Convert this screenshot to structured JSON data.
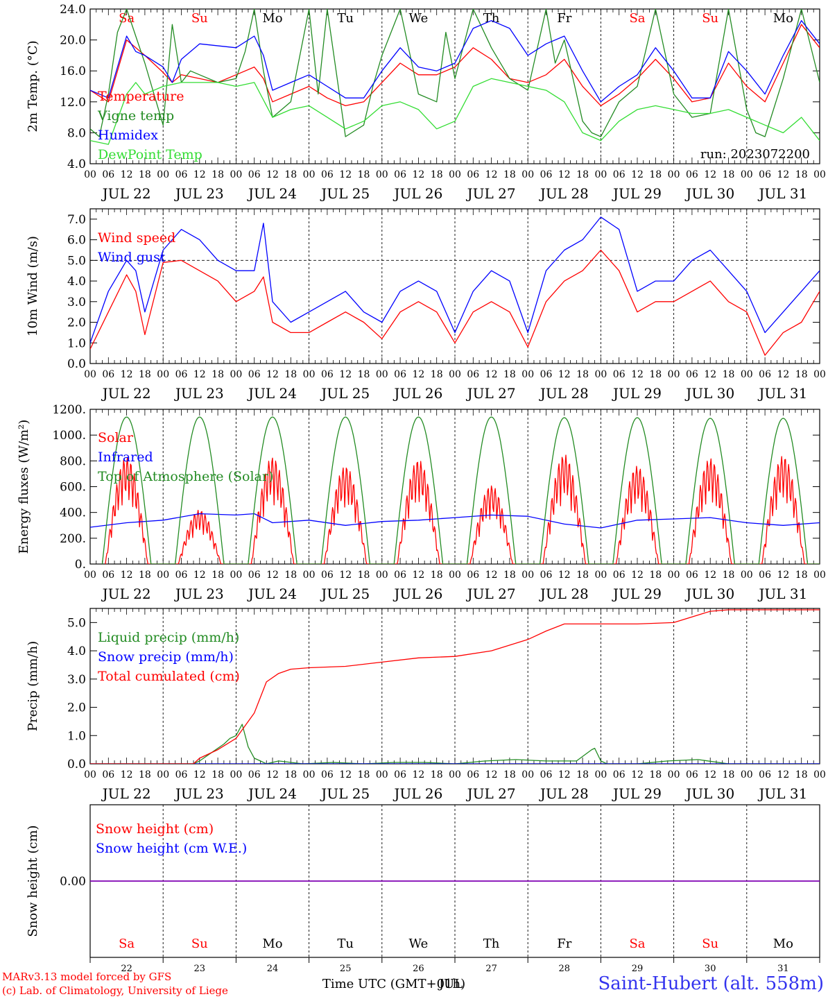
{
  "colors": {
    "red": "#ff0000",
    "green": "#228b22",
    "blue": "#0000ff",
    "lime": "#33dd33",
    "purple": "#7f00b2",
    "axis": "#000000",
    "title_blue": "#3333ee"
  },
  "run_label": "run: 2023072200",
  "footer": {
    "model_line": "MARv3.13 model forced by GFS",
    "credit_line": "(c) Lab. of Climatology, University of Liege",
    "time_axis_label": "Time UTC (GMT+01h)",
    "overlap_label": "JUL",
    "station_title": "Saint-Hubert (alt. 558m)"
  },
  "days": {
    "dates": [
      "JUL 22",
      "JUL 23",
      "JUL 24",
      "JUL 25",
      "JUL 26",
      "JUL 27",
      "JUL 28",
      "JUL 29",
      "JUL 30",
      "JUL 31"
    ],
    "day_numbers": [
      "22",
      "23",
      "24",
      "25",
      "26",
      "27",
      "28",
      "29",
      "30",
      "31"
    ],
    "weekdays": [
      "Sa",
      "Su",
      "Mo",
      "Tu",
      "We",
      "Th",
      "Fr",
      "Sa",
      "Su",
      "Mo"
    ],
    "weekend": [
      true,
      true,
      false,
      false,
      false,
      false,
      false,
      true,
      true,
      false
    ],
    "hour_labels": [
      "00",
      "06",
      "12",
      "18"
    ],
    "end_hour_label": "00"
  },
  "chart_data": [
    {
      "id": "temperature",
      "type": "line",
      "ylabel": "2m Temp. (°C)",
      "ylim": [
        4,
        24
      ],
      "yticks": [
        "4.0",
        "8.0",
        "12.0",
        "16.0",
        "20.0",
        "24.0"
      ],
      "ytick_values": [
        4,
        8,
        12,
        16,
        20,
        24
      ],
      "x_unit": "hours since Jul 22 00 UTC",
      "show_weekdays": true,
      "series": [
        {
          "name": "Temperature",
          "color": "red",
          "x": [
            0,
            6,
            12,
            15,
            18,
            24,
            27,
            30,
            36,
            42,
            48,
            54,
            57,
            60,
            66,
            72,
            78,
            84,
            90,
            96,
            102,
            108,
            114,
            120,
            126,
            132,
            138,
            144,
            150,
            156,
            162,
            168,
            174,
            180,
            186,
            192,
            198,
            204,
            210,
            216,
            222,
            228,
            234,
            240
          ],
          "y": [
            13.5,
            12.0,
            20.0,
            19.0,
            18.0,
            15.8,
            14.5,
            15.5,
            15.0,
            14.5,
            15.5,
            16.5,
            15.0,
            12.0,
            13.0,
            14.0,
            12.5,
            11.5,
            12.0,
            14.5,
            17.0,
            15.5,
            15.5,
            16.5,
            19.0,
            17.5,
            15.0,
            14.5,
            15.5,
            17.5,
            14.0,
            11.5,
            13.0,
            15.0,
            17.5,
            15.0,
            12.0,
            12.5,
            17.0,
            14.0,
            12.0,
            17.0,
            22.0,
            19.0
          ]
        },
        {
          "name": "Vigne temp",
          "color": "green",
          "x": [
            0,
            3,
            6,
            9,
            12,
            18,
            24,
            27,
            30,
            33,
            36,
            42,
            48,
            51,
            54,
            57,
            60,
            66,
            72,
            75,
            78,
            84,
            90,
            93,
            96,
            102,
            108,
            114,
            117,
            120,
            126,
            132,
            138,
            144,
            150,
            153,
            156,
            162,
            165,
            168,
            174,
            180,
            186,
            192,
            198,
            204,
            210,
            216,
            219,
            222,
            228,
            234,
            240
          ],
          "y": [
            8.5,
            7.5,
            13.0,
            21.0,
            24.0,
            17.0,
            9.0,
            22.0,
            14.5,
            16.0,
            15.5,
            14.5,
            15.0,
            18.5,
            24.0,
            16.0,
            10.0,
            12.0,
            24.0,
            13.0,
            24.0,
            7.5,
            9.0,
            14.0,
            18.0,
            24.0,
            13.0,
            12.0,
            21.0,
            15.0,
            24.0,
            19.0,
            15.0,
            13.5,
            24.0,
            17.0,
            20.0,
            9.5,
            8.0,
            7.5,
            12.0,
            14.0,
            24.0,
            13.0,
            10.0,
            10.5,
            24.0,
            11.0,
            8.0,
            7.5,
            15.0,
            24.0,
            14.5
          ]
        },
        {
          "name": "Humidex",
          "color": "blue",
          "x": [
            0,
            6,
            12,
            15,
            18,
            24,
            27,
            30,
            36,
            48,
            54,
            57,
            60,
            66,
            72,
            78,
            84,
            90,
            96,
            102,
            108,
            114,
            120,
            126,
            132,
            138,
            144,
            150,
            156,
            162,
            168,
            174,
            180,
            186,
            192,
            198,
            204,
            210,
            216,
            222,
            228,
            234,
            240
          ],
          "y": [
            13.5,
            12.5,
            20.5,
            18.5,
            18.0,
            16.5,
            14.5,
            17.5,
            19.5,
            19.0,
            20.5,
            18.0,
            13.5,
            14.5,
            15.5,
            14.0,
            12.5,
            12.5,
            16.0,
            19.0,
            16.5,
            16.0,
            17.0,
            21.5,
            22.5,
            21.5,
            18.0,
            19.5,
            20.5,
            16.0,
            12.0,
            14.0,
            15.5,
            19.0,
            16.0,
            12.5,
            12.5,
            18.5,
            16.0,
            13.0,
            18.0,
            22.5,
            19.5
          ]
        },
        {
          "name": "DewPoint Temp",
          "color": "lime",
          "x": [
            0,
            6,
            12,
            15,
            18,
            24,
            30,
            36,
            42,
            48,
            54,
            60,
            66,
            72,
            78,
            84,
            90,
            96,
            102,
            108,
            114,
            120,
            126,
            132,
            138,
            144,
            150,
            156,
            162,
            168,
            174,
            180,
            186,
            192,
            198,
            204,
            210,
            216,
            222,
            228,
            234,
            240
          ],
          "y": [
            7.0,
            6.5,
            13.0,
            14.5,
            13.0,
            14.0,
            14.5,
            14.5,
            14.5,
            14.0,
            14.5,
            10.0,
            11.0,
            11.5,
            10.0,
            8.5,
            9.5,
            11.5,
            12.0,
            11.0,
            8.5,
            9.5,
            14.0,
            15.0,
            14.5,
            14.0,
            13.5,
            12.0,
            8.0,
            7.0,
            9.5,
            11.0,
            11.5,
            11.0,
            10.5,
            10.5,
            11.0,
            10.0,
            9.0,
            8.0,
            10.0,
            7.0
          ]
        }
      ]
    },
    {
      "id": "wind",
      "type": "line",
      "ylabel": "10m Wind (m/s)",
      "ylim": [
        0,
        7.5
      ],
      "yticks": [
        "0.0",
        "1.0",
        "2.0",
        "3.0",
        "4.0",
        "5.0",
        "6.0",
        "7.0"
      ],
      "ytick_values": [
        0,
        1,
        2,
        3,
        4,
        5,
        6,
        7
      ],
      "reference_line": 5.0,
      "x_unit": "hours since Jul 22 00 UTC",
      "series": [
        {
          "name": "Wind speed",
          "color": "red",
          "x": [
            0,
            6,
            12,
            15,
            18,
            24,
            30,
            36,
            42,
            48,
            54,
            57,
            60,
            66,
            72,
            78,
            84,
            90,
            96,
            102,
            108,
            114,
            120,
            126,
            132,
            138,
            144,
            150,
            156,
            162,
            168,
            174,
            180,
            186,
            192,
            198,
            204,
            210,
            216,
            222,
            228,
            234,
            240
          ],
          "y": [
            0.7,
            2.5,
            4.3,
            3.5,
            1.4,
            4.9,
            5.0,
            4.5,
            4.0,
            3.0,
            3.5,
            4.2,
            2.0,
            1.5,
            1.5,
            2.0,
            2.5,
            2.0,
            1.2,
            2.5,
            3.0,
            2.5,
            1.0,
            2.5,
            3.0,
            2.5,
            0.8,
            3.0,
            4.0,
            4.5,
            5.5,
            4.5,
            2.5,
            3.0,
            3.0,
            3.5,
            4.0,
            3.0,
            2.5,
            0.4,
            1.5,
            2.0,
            3.5
          ]
        },
        {
          "name": "Wind gust",
          "color": "blue",
          "x": [
            0,
            6,
            12,
            15,
            18,
            24,
            30,
            36,
            42,
            48,
            54,
            57,
            60,
            66,
            72,
            78,
            84,
            90,
            96,
            102,
            108,
            114,
            120,
            126,
            132,
            138,
            144,
            150,
            156,
            162,
            168,
            174,
            180,
            186,
            192,
            198,
            204,
            210,
            216,
            222,
            228,
            234,
            240
          ],
          "y": [
            1.0,
            3.5,
            5.0,
            4.5,
            2.5,
            5.5,
            6.5,
            6.0,
            5.0,
            4.5,
            4.5,
            6.8,
            3.0,
            2.0,
            2.5,
            3.0,
            3.5,
            2.5,
            2.0,
            3.5,
            4.0,
            3.5,
            1.5,
            3.5,
            4.5,
            4.0,
            1.5,
            4.5,
            5.5,
            6.0,
            7.1,
            6.5,
            3.5,
            4.0,
            4.0,
            5.0,
            5.5,
            4.5,
            3.5,
            1.5,
            2.5,
            3.5,
            4.5
          ]
        }
      ]
    },
    {
      "id": "energy",
      "type": "line",
      "ylabel": "Energy fluxes (W/m²)",
      "ylim": [
        0,
        1200
      ],
      "yticks": [
        "0.",
        "200.",
        "400.",
        "600.",
        "800.",
        "1000.",
        "1200."
      ],
      "ytick_values": [
        0,
        200,
        400,
        600,
        800,
        1000,
        1200
      ],
      "x_unit": "hours since Jul 22 00 UTC",
      "series": [
        {
          "name": "Solar",
          "color": "red",
          "daily_peak": [
            830,
            420,
            830,
            760,
            810,
            610,
            850,
            760,
            820,
            840
          ]
        },
        {
          "name": "Infrared",
          "color": "blue",
          "x": [
            0,
            12,
            24,
            36,
            48,
            54,
            60,
            72,
            84,
            96,
            108,
            120,
            132,
            144,
            156,
            168,
            180,
            192,
            204,
            216,
            228,
            240
          ],
          "y": [
            285,
            320,
            340,
            390,
            380,
            390,
            320,
            340,
            300,
            330,
            340,
            360,
            380,
            370,
            310,
            280,
            340,
            350,
            360,
            320,
            300,
            320
          ]
        },
        {
          "name": "Top of Atmosphere (Solar)",
          "color": "green",
          "daily_peak": [
            1140,
            1140,
            1140,
            1140,
            1140,
            1140,
            1135,
            1135,
            1130,
            1130
          ]
        }
      ]
    },
    {
      "id": "precip",
      "type": "line",
      "ylabel": "Precip (mm/h)",
      "ylim": [
        0,
        5.5
      ],
      "yticks": [
        "0.0",
        "1.0",
        "2.0",
        "3.0",
        "4.0",
        "5.0"
      ],
      "ytick_values": [
        0,
        1,
        2,
        3,
        4,
        5
      ],
      "x_unit": "hours since Jul 22 00 UTC",
      "series": [
        {
          "name": "Liquid precip (mm/h)",
          "color": "green",
          "x": [
            0,
            34,
            36,
            40,
            44,
            46,
            48,
            50,
            52,
            54,
            56,
            58,
            62,
            70,
            80,
            90,
            100,
            110,
            120,
            130,
            140,
            150,
            160,
            165,
            166,
            168,
            170,
            180,
            190,
            200,
            210,
            240
          ],
          "y": [
            0,
            0,
            0.1,
            0.4,
            0.7,
            0.9,
            1.0,
            1.4,
            0.6,
            0.2,
            0.1,
            0,
            0.1,
            0,
            0.05,
            0,
            0.05,
            0.05,
            0,
            0.1,
            0.15,
            0.1,
            0.1,
            0.5,
            0.55,
            0.1,
            0,
            0,
            0.1,
            0.15,
            0,
            0
          ]
        },
        {
          "name": "Snow precip (mm/h)",
          "color": "blue",
          "x": [
            0,
            240
          ],
          "y": [
            0,
            0
          ]
        },
        {
          "name": "Total cumulated (cm)",
          "color": "red",
          "x": [
            0,
            34,
            36,
            42,
            48,
            54,
            58,
            62,
            66,
            72,
            84,
            96,
            108,
            120,
            132,
            144,
            150,
            156,
            162,
            168,
            180,
            192,
            198,
            204,
            210,
            216,
            240
          ],
          "y": [
            0,
            0,
            0.2,
            0.5,
            0.9,
            1.8,
            2.9,
            3.2,
            3.35,
            3.4,
            3.45,
            3.6,
            3.75,
            3.8,
            4.0,
            4.4,
            4.7,
            4.95,
            4.95,
            4.95,
            4.95,
            5.0,
            5.2,
            5.4,
            5.45,
            5.45,
            5.45
          ]
        }
      ]
    },
    {
      "id": "snow",
      "type": "line",
      "ylabel": "Snow height (cm)",
      "ylim": [
        -1,
        1
      ],
      "yticks": [
        "0.00"
      ],
      "ytick_values": [
        0
      ],
      "x_unit": "hours since Jul 22 00 UTC",
      "series": [
        {
          "name": "Snow height (cm)",
          "color": "red",
          "x": [
            0,
            240
          ],
          "y": [
            0,
            0
          ]
        },
        {
          "name": "Snow height (cm W.E.)",
          "color": "blue",
          "x": [
            0,
            240
          ],
          "y": [
            0,
            0
          ]
        }
      ]
    }
  ]
}
